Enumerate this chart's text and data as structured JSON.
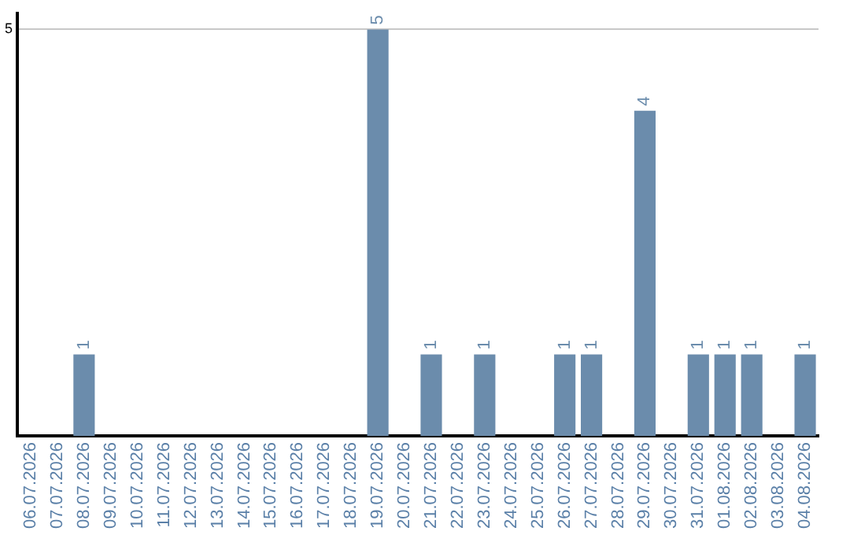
{
  "chart_data": {
    "type": "bar",
    "categories": [
      "06.07.2026",
      "07.07.2026",
      "08.07.2026",
      "09.07.2026",
      "10.07.2026",
      "11.07.2026",
      "12.07.2026",
      "13.07.2026",
      "14.07.2026",
      "15.07.2026",
      "16.07.2026",
      "17.07.2026",
      "18.07.2026",
      "19.07.2026",
      "20.07.2026",
      "21.07.2026",
      "22.07.2026",
      "23.07.2026",
      "24.07.2026",
      "25.07.2026",
      "26.07.2026",
      "27.07.2026",
      "28.07.2026",
      "29.07.2026",
      "30.07.2026",
      "31.07.2026",
      "01.08.2026",
      "02.08.2026",
      "03.08.2026",
      "04.08.2026"
    ],
    "values": [
      null,
      null,
      1,
      null,
      null,
      null,
      null,
      null,
      null,
      null,
      null,
      null,
      null,
      5,
      null,
      1,
      null,
      1,
      null,
      null,
      1,
      1,
      null,
      4,
      null,
      1,
      1,
      1,
      null,
      1
    ],
    "color": "#6b8cac",
    "ylim": [
      0,
      5.2
    ],
    "yticks": [
      5
    ],
    "grid": "y",
    "legend": false,
    "data_labels": true
  }
}
